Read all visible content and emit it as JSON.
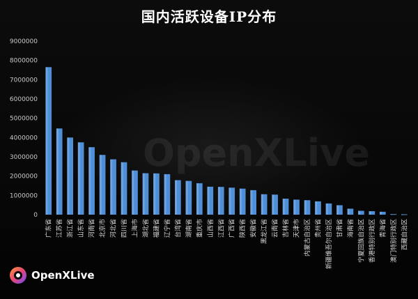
{
  "chart_data": {
    "type": "bar",
    "title": "国内活跃设备IP分布",
    "xlabel": "",
    "ylabel": "",
    "ylim": [
      0,
      9000000
    ],
    "yticks": [
      0,
      1000000,
      2000000,
      3000000,
      4000000,
      5000000,
      6000000,
      7000000,
      8000000,
      9000000
    ],
    "grid": false,
    "bar_color": "#4f8fd8",
    "categories": [
      "广东省",
      "江苏省",
      "浙江省",
      "山东省",
      "河南省",
      "北京市",
      "河北省",
      "四川省",
      "上海市",
      "湖北省",
      "福建省",
      "辽宁省",
      "台湾省",
      "湖南省",
      "重庆市",
      "山西省",
      "江西省",
      "广西省",
      "陕西省",
      "安徽省",
      "黑龙江省",
      "云南省",
      "吉林省",
      "天津市",
      "内蒙古自治区",
      "贵州省",
      "新疆维吾尔自治区",
      "甘肃省",
      "海南省",
      "宁夏回族自治区",
      "香港特别行政区",
      "青海省",
      "澳门特别行政区",
      "西藏自治区"
    ],
    "values": [
      7650000,
      4470000,
      4000000,
      3750000,
      3500000,
      3100000,
      2870000,
      2720000,
      2290000,
      2150000,
      2140000,
      2100000,
      1790000,
      1750000,
      1630000,
      1450000,
      1440000,
      1400000,
      1350000,
      1270000,
      1060000,
      1040000,
      830000,
      780000,
      750000,
      690000,
      580000,
      490000,
      310000,
      200000,
      180000,
      150000,
      30000,
      20000
    ]
  },
  "brand": {
    "watermark": "OpenXLive",
    "logo_text": "OpenXLive"
  }
}
